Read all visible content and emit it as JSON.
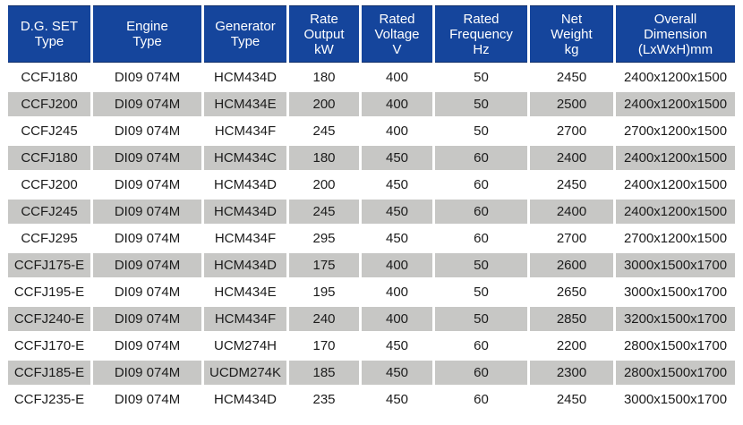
{
  "colors": {
    "header_bg": "#15459c",
    "header_text": "#ffffff",
    "row_alt_bg": "#c7c7c5",
    "body_text": "#1c1c1c",
    "page_bg": "#ffffff"
  },
  "table": {
    "headers": [
      "D.G. SET\nType",
      "Engine\nType",
      "Generator\nType",
      "Rate\nOutput\nkW",
      "Rated\nVoltage\nV",
      "Rated\nFrequency\nHz",
      "Net\nWeight\nkg",
      "Overall\nDimension\n(LxWxH)mm"
    ],
    "rows": [
      [
        "CCFJ180",
        "DI09 074M",
        "HCM434D",
        "180",
        "400",
        "50",
        "2450",
        "2400x1200x1500"
      ],
      [
        "CCFJ200",
        "DI09 074M",
        "HCM434E",
        "200",
        "400",
        "50",
        "2500",
        "2400x1200x1500"
      ],
      [
        "CCFJ245",
        "DI09 074M",
        "HCM434F",
        "245",
        "400",
        "50",
        "2700",
        "2700x1200x1500"
      ],
      [
        "CCFJ180",
        "DI09 074M",
        "HCM434C",
        "180",
        "450",
        "60",
        "2400",
        "2400x1200x1500"
      ],
      [
        "CCFJ200",
        "DI09 074M",
        "HCM434D",
        "200",
        "450",
        "60",
        "2450",
        "2400x1200x1500"
      ],
      [
        "CCFJ245",
        "DI09 074M",
        "HCM434D",
        "245",
        "450",
        "60",
        "2400",
        "2400x1200x1500"
      ],
      [
        "CCFJ295",
        "DI09 074M",
        "HCM434F",
        "295",
        "450",
        "60",
        "2700",
        "2700x1200x1500"
      ],
      [
        "CCFJ175-E",
        "DI09 074M",
        "HCM434D",
        "175",
        "400",
        "50",
        "2600",
        "3000x1500x1700"
      ],
      [
        "CCFJ195-E",
        "DI09 074M",
        "HCM434E",
        "195",
        "400",
        "50",
        "2650",
        "3000x1500x1700"
      ],
      [
        "CCFJ240-E",
        "DI09 074M",
        "HCM434F",
        "240",
        "400",
        "50",
        "2850",
        "3200x1500x1700"
      ],
      [
        "CCFJ170-E",
        "DI09 074M",
        "UCM274H",
        "170",
        "450",
        "60",
        "2200",
        "2800x1500x1700"
      ],
      [
        "CCFJ185-E",
        "DI09 074M",
        "UCDM274K",
        "185",
        "450",
        "60",
        "2300",
        "2800x1500x1700"
      ],
      [
        "CCFJ235-E",
        "DI09 074M",
        "HCM434D",
        "235",
        "450",
        "60",
        "2450",
        "3000x1500x1700"
      ]
    ]
  }
}
